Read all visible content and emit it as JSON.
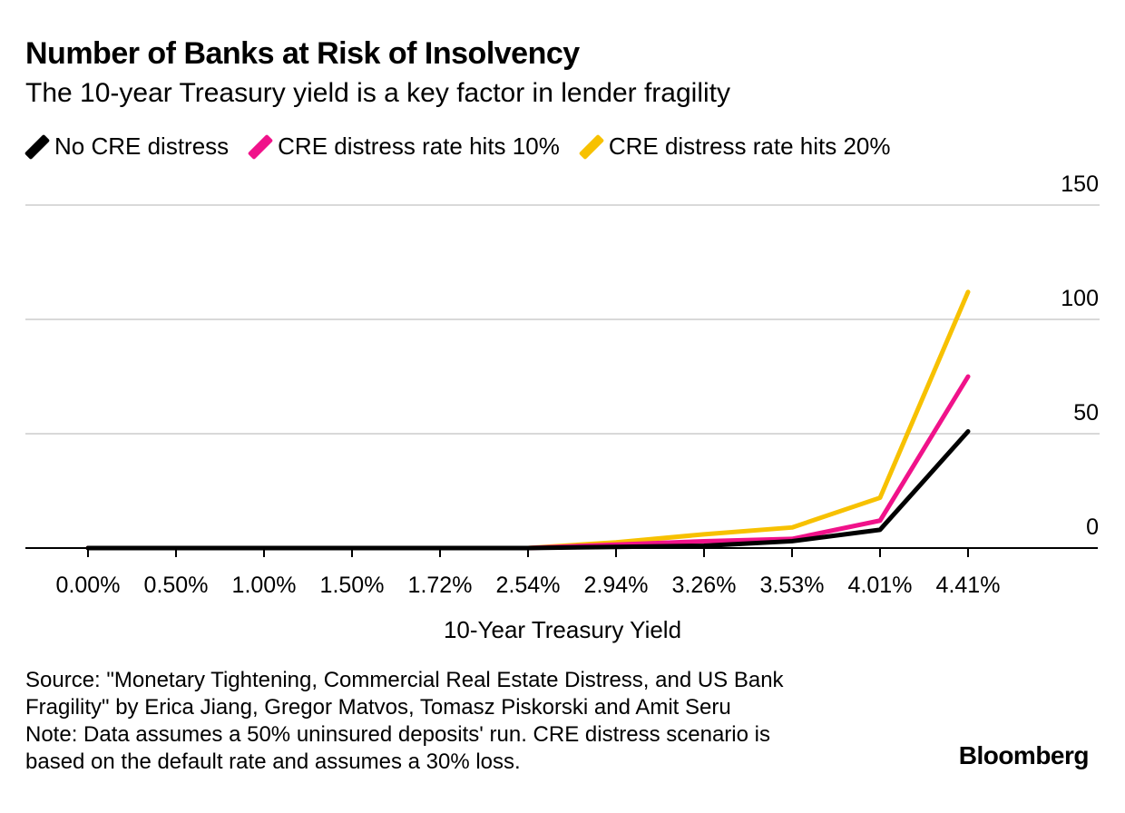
{
  "chart_data": {
    "type": "line",
    "title": "Number of Banks at Risk of Insolvency",
    "subtitle": "The 10-year Treasury yield is a key factor in lender fragility",
    "categories": [
      "0.00%",
      "0.50%",
      "1.00%",
      "1.50%",
      "1.72%",
      "2.54%",
      "2.94%",
      "3.26%",
      "3.53%",
      "4.01%",
      "4.41%"
    ],
    "series": [
      {
        "name": "No CRE distress",
        "color": "#000000",
        "values": [
          0,
          0,
          0,
          0,
          0,
          0,
          0.5,
          1,
          3,
          8,
          51
        ]
      },
      {
        "name": "CRE distress rate hits 10%",
        "color": "#f0128a",
        "values": [
          0,
          0,
          0,
          0,
          0,
          0,
          1.5,
          3,
          4,
          12,
          75
        ]
      },
      {
        "name": "CRE distress rate hits 20%",
        "color": "#f7c100",
        "values": [
          0,
          0,
          0,
          0,
          0,
          0,
          2.5,
          6,
          9,
          22,
          112
        ]
      }
    ],
    "xlabel": "10-Year Treasury Yield",
    "ylabel": "",
    "ylim": [
      0,
      150
    ],
    "yticks": [
      0,
      50,
      100,
      150
    ],
    "grid": true,
    "legend": "top-left"
  },
  "footnote": {
    "source": "Source: \"Monetary Tightening, Commercial Real Estate Distress, and US Bank\nFragility\" by Erica Jiang, Gregor Matvos, Tomasz Piskorski and Amit Seru",
    "note": "Note: Data assumes a 50% uninsured deposits' run. CRE distress scenario is\nbased on the default rate and assumes a 30% loss."
  },
  "brand": "Bloomberg"
}
